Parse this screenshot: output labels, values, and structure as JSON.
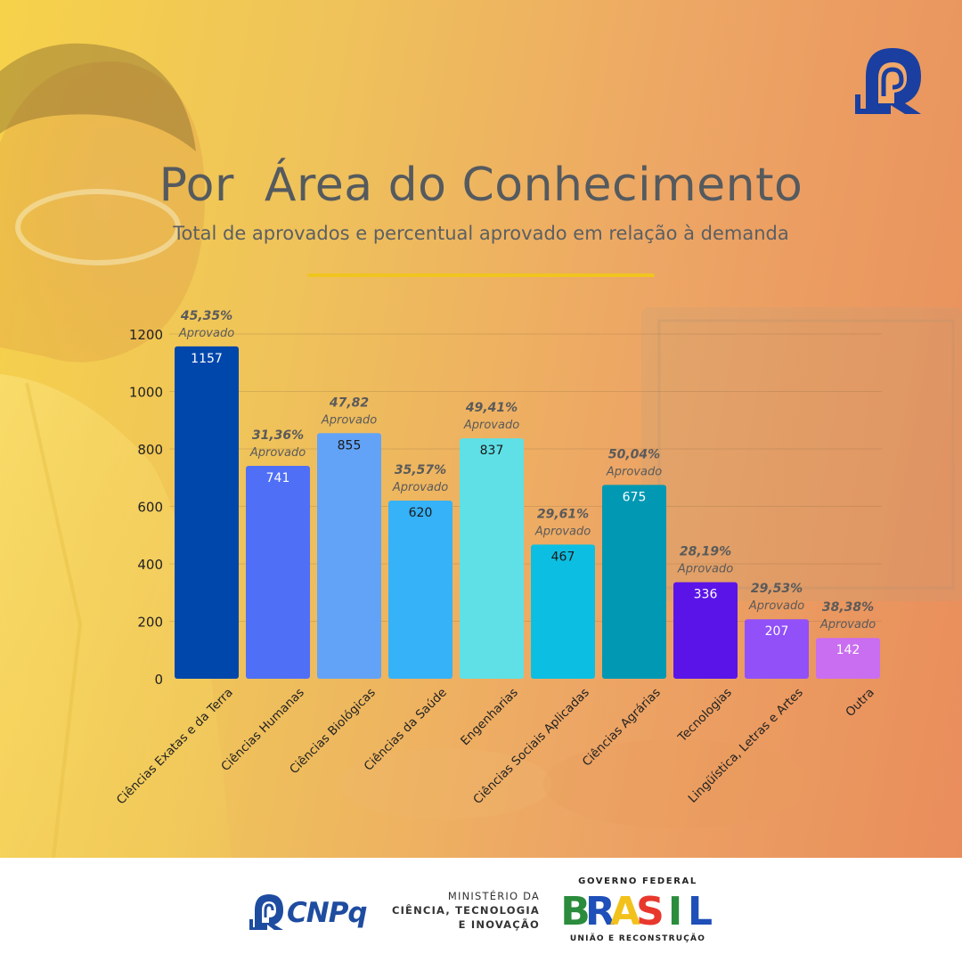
{
  "title": "Por  Área do Conhecimento",
  "subtitle": "Total de aprovados e percentual aprovado em relação à demanda",
  "colors": {
    "title_rule": "#f0c51e",
    "axis_text": "#222222",
    "pct_text": "#5a5a5a",
    "brand_blue": "#1e4ca0"
  },
  "icons": {
    "corner_logo": "cnpq-logo-icon",
    "footer_logo": "cnpq-logo-icon"
  },
  "chart_data": {
    "type": "bar",
    "title": "Por  Área do Conhecimento",
    "subtitle": "Total de aprovados e percentual aprovado em relação à demanda",
    "ylim": [
      0,
      1200
    ],
    "yticks": [
      0,
      200,
      400,
      600,
      800,
      1000,
      1200
    ],
    "grid": true,
    "categories": [
      "Ciências Exatas e da Terra",
      "Ciências Humanas",
      "Ciências Biológicas",
      "Ciências da Saúde",
      "Engenharias",
      "Ciências Sociais Aplicadas",
      "Ciências Agrárias",
      "Tecnologias",
      "Lingüística, Letras e Artes",
      "Outra"
    ],
    "values": [
      1157,
      741,
      855,
      620,
      837,
      467,
      675,
      336,
      207,
      142
    ],
    "value_labels": [
      "1157",
      "741",
      "855",
      "620",
      "837",
      "467",
      "675",
      "336",
      "207",
      "142"
    ],
    "percent_labels": [
      "45,35%",
      "31,36%",
      "47,82",
      "35,57%",
      "49,41%",
      "29,61%",
      "50,04%",
      "28,19%",
      "29,53%",
      "38,38%"
    ],
    "percent_suffix": "Aprovado",
    "bar_colors": [
      "#0047ab",
      "#4f6ff6",
      "#62a3f7",
      "#36b2f8",
      "#5ee0e6",
      "#0cbfe2",
      "#0098b3",
      "#5b14e8",
      "#9150f8",
      "#c96ef0"
    ],
    "value_label_colors": [
      "#ffffff",
      "#ffffff",
      "#1a1a1a",
      "#1a1a1a",
      "#1a1a1a",
      "#1a1a1a",
      "#ffffff",
      "#ffffff",
      "#ffffff",
      "#ffffff"
    ]
  },
  "footer": {
    "cnpq_label": "CNPq",
    "ministry_line1": "MINISTÉRIO DA",
    "ministry_line2": "CIÊNCIA, TECNOLOGIA",
    "ministry_line3": "E INOVAÇÃO",
    "gov_top": "GOVERNO FEDERAL",
    "gov_word": "BRASIL",
    "gov_bottom": "UNIÃO E RECONSTRUÇÃO"
  }
}
